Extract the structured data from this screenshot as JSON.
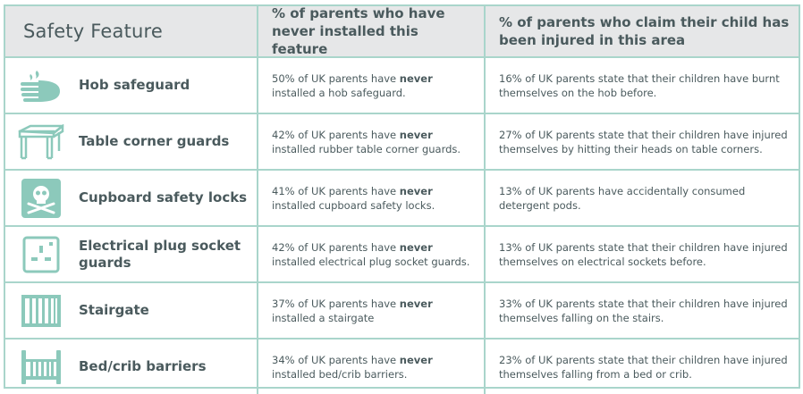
{
  "header": {
    "col1": "Safety Feature",
    "col2": "% of parents who have never installed this feature",
    "col3": "% of parents who claim their child has been injured in this area"
  },
  "rows": [
    {
      "feature": "Hob safeguard",
      "icon": "hand-flame-icon",
      "never_prefix": "50% of UK parents have ",
      "never_word": "never",
      "never_suffix": " installed a hob safeguard.",
      "injured": "16% of UK parents state that their children have burnt themselves on the hob before."
    },
    {
      "feature": "Table corner guards",
      "icon": "table-icon",
      "never_prefix": "42% of UK parents have ",
      "never_word": "never",
      "never_suffix": " installed rubber table corner guards.",
      "injured": "27% of UK parents state that their children have injured themselves by hitting their heads on table corners."
    },
    {
      "feature": "Cupboard safety locks",
      "icon": "skull-crossbones-icon",
      "never_prefix": "41% of UK parents have ",
      "never_word": "never",
      "never_suffix": " installed cupboard safety locks.",
      "injured": "13% of UK parents have accidentally consumed detergent pods."
    },
    {
      "feature": "Electrical plug socket guards",
      "icon": "plug-socket-icon",
      "never_prefix": "42% of UK parents have ",
      "never_word": "never",
      "never_suffix": " installed electrical plug socket guards.",
      "injured": "13% of UK parents state that their children have injured themselves on electrical sockets before."
    },
    {
      "feature": "Stairgate",
      "icon": "stairgate-icon",
      "never_prefix": "37% of UK parents have ",
      "never_word": "never",
      "never_suffix": " installed a stairgate",
      "injured": "33% of UK parents state that their children have injured themselves falling on the stairs."
    },
    {
      "feature": "Bed/crib barriers",
      "icon": "crib-icon",
      "never_prefix": "34% of UK parents have ",
      "never_word": "never",
      "never_suffix": " installed bed/crib barriers.",
      "injured": "23% of UK parents state that their children have injured themselves falling from a bed or crib."
    }
  ],
  "colors": {
    "border": "#a9d5cb",
    "icon": "#8cc9bb",
    "header_bg": "#e6e7e8",
    "text": "#4a5a5d"
  }
}
